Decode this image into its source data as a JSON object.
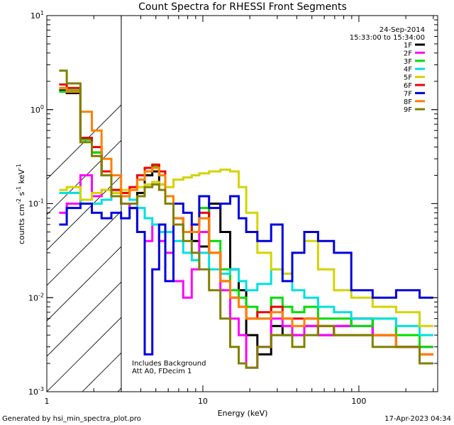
{
  "chart_data": {
    "type": "line",
    "title": "Count Spectra for RHESSI Front Segments",
    "xlabel": "Energy (keV)",
    "ylabel_main": "counts cm",
    "ylabel_exp1": "-2",
    "ylabel_s": " s",
    "ylabel_exp2": "-1",
    "ylabel_kev": " keV",
    "ylabel_exp3": "-1",
    "xscale": "log",
    "yscale": "log",
    "xlim": [
      1,
      320
    ],
    "ylim": [
      0.001,
      10
    ],
    "hatched_region_keV": [
      1,
      3
    ],
    "x_ticks": [
      {
        "value": 1,
        "label": "1"
      },
      {
        "value": 10,
        "label": "10"
      },
      {
        "value": 100,
        "label": "100"
      }
    ],
    "y_ticks": [
      {
        "value": 10,
        "base": "10",
        "exp": "1"
      },
      {
        "value": 1,
        "base": "10",
        "exp": "0"
      },
      {
        "value": 0.1,
        "base": "10",
        "exp": "-1"
      },
      {
        "value": 0.01,
        "base": "10",
        "exp": "-2"
      },
      {
        "value": 0.001,
        "base": "10",
        "exp": "-3"
      }
    ],
    "date": "24-Sep-2014",
    "time_range": "15:33:00 to 15:34:00",
    "annotation_line1": "Includes Background",
    "annotation_line2": "Att A0, FDecim 1",
    "legend_position": "top-right",
    "series": [
      {
        "name": "1F",
        "color": "#000000",
        "x": [
          1.2,
          1.5,
          1.8,
          2.1,
          2.4,
          2.8,
          3.2,
          3.6,
          4.0,
          4.5,
          5.0,
          5.5,
          6.0,
          7.0,
          8.0,
          9.0,
          10,
          12,
          14,
          16,
          18,
          20,
          25,
          30,
          35,
          40,
          50,
          60,
          80,
          100,
          150,
          200,
          300
        ],
        "y": [
          1.6,
          1.5,
          0.5,
          0.35,
          0.2,
          0.13,
          0.1,
          0.09,
          0.13,
          0.2,
          0.22,
          0.16,
          0.1,
          0.06,
          0.05,
          0.04,
          0.035,
          0.1,
          0.05,
          0.02,
          0.012,
          0.004,
          0.0025,
          0.005,
          0.004,
          0.004,
          0.005,
          0.004,
          0.005,
          0.006,
          0.004,
          0.003,
          0.002
        ]
      },
      {
        "name": "2F",
        "color": "#ff00ff",
        "x": [
          1.2,
          1.5,
          1.8,
          2.1,
          2.4,
          2.8,
          3.2,
          3.6,
          4.0,
          4.5,
          5.0,
          5.5,
          6.0,
          7.0,
          8.0,
          9.0,
          10,
          12,
          14,
          16,
          18,
          20,
          25,
          30,
          35,
          40,
          50,
          60,
          80,
          100,
          150,
          200,
          300
        ],
        "y": [
          0.08,
          0.1,
          0.2,
          0.12,
          0.14,
          0.12,
          0.1,
          0.09,
          0.05,
          0.04,
          0.06,
          0.04,
          0.03,
          0.015,
          0.01,
          0.02,
          0.05,
          0.03,
          0.012,
          0.006,
          0.004,
          0.0018,
          0.003,
          0.006,
          0.005,
          0.004,
          0.005,
          0.004,
          0.005,
          0.005,
          0.004,
          0.003,
          0.003
        ]
      },
      {
        "name": "3F",
        "color": "#00dd00",
        "x": [
          1.2,
          1.5,
          1.8,
          2.1,
          2.4,
          2.8,
          3.2,
          3.6,
          4.0,
          4.5,
          5.0,
          5.5,
          6.0,
          7.0,
          8.0,
          9.0,
          10,
          12,
          14,
          16,
          18,
          20,
          25,
          30,
          35,
          40,
          50,
          60,
          80,
          100,
          150,
          200,
          300
        ],
        "y": [
          1.55,
          1.6,
          0.48,
          0.35,
          0.22,
          0.14,
          0.12,
          0.14,
          0.18,
          0.22,
          0.25,
          0.2,
          0.12,
          0.07,
          0.05,
          0.06,
          0.09,
          0.04,
          0.02,
          0.012,
          0.01,
          0.008,
          0.006,
          0.01,
          0.008,
          0.007,
          0.008,
          0.006,
          0.006,
          0.005,
          0.006,
          0.004,
          0.003
        ]
      },
      {
        "name": "4F",
        "color": "#00e0e0",
        "x": [
          1.2,
          1.5,
          1.8,
          2.1,
          2.4,
          2.8,
          3.2,
          3.6,
          4.0,
          4.5,
          5.0,
          5.5,
          6.0,
          7.0,
          8.0,
          9.0,
          10,
          12,
          14,
          16,
          18,
          20,
          25,
          30,
          35,
          40,
          50,
          60,
          80,
          100,
          150,
          200,
          300
        ],
        "y": [
          0.13,
          0.13,
          0.1,
          0.1,
          0.11,
          0.12,
          0.12,
          0.11,
          0.09,
          0.07,
          0.06,
          0.05,
          0.05,
          0.04,
          0.03,
          0.025,
          0.03,
          0.02,
          0.018,
          0.02,
          0.015,
          0.012,
          0.014,
          0.02,
          0.018,
          0.012,
          0.01,
          0.008,
          0.007,
          0.006,
          0.006,
          0.005,
          0.004
        ]
      },
      {
        "name": "5F",
        "color": "#d4d400",
        "x": [
          1.2,
          1.5,
          1.8,
          2.1,
          2.4,
          2.8,
          3.2,
          3.6,
          4.0,
          4.5,
          5.0,
          5.5,
          6.0,
          7.0,
          8.0,
          9.0,
          10,
          12,
          14,
          16,
          18,
          20,
          25,
          30,
          35,
          40,
          50,
          60,
          80,
          100,
          150,
          200,
          300
        ],
        "y": [
          0.14,
          0.15,
          0.11,
          0.13,
          0.14,
          0.13,
          0.14,
          0.14,
          0.15,
          0.16,
          0.17,
          0.16,
          0.15,
          0.18,
          0.19,
          0.2,
          0.21,
          0.22,
          0.23,
          0.22,
          0.15,
          0.08,
          0.03,
          0.02,
          0.018,
          0.03,
          0.04,
          0.02,
          0.012,
          0.01,
          0.008,
          0.007,
          0.005
        ]
      },
      {
        "name": "6F",
        "color": "#ee0000",
        "x": [
          1.2,
          1.5,
          1.8,
          2.1,
          2.4,
          2.8,
          3.2,
          3.6,
          4.0,
          4.5,
          5.0,
          5.5,
          6.0,
          7.0,
          8.0,
          9.0,
          10,
          12,
          14,
          16,
          18,
          20,
          25,
          30,
          35,
          40,
          50,
          60,
          80,
          100,
          150,
          200,
          300
        ],
        "y": [
          1.85,
          1.7,
          0.5,
          0.4,
          0.22,
          0.14,
          0.13,
          0.15,
          0.2,
          0.24,
          0.26,
          0.22,
          0.12,
          0.07,
          0.05,
          0.06,
          0.08,
          0.03,
          0.015,
          0.01,
          0.008,
          0.006,
          0.007,
          0.008,
          0.006,
          0.006,
          0.006,
          0.005,
          0.004,
          0.004,
          0.004,
          0.003,
          0.0025
        ]
      },
      {
        "name": "7F",
        "color": "#0000dd",
        "x": [
          1.2,
          1.5,
          1.8,
          2.1,
          2.4,
          2.8,
          3.2,
          3.6,
          4.0,
          4.5,
          5.0,
          5.5,
          6.0,
          7.0,
          8.0,
          9.0,
          10,
          12,
          14,
          16,
          18,
          20,
          25,
          30,
          35,
          40,
          50,
          60,
          80,
          100,
          150,
          200,
          300
        ],
        "y": [
          0.06,
          0.09,
          0.1,
          0.08,
          0.07,
          0.08,
          0.07,
          0.09,
          0.05,
          0.0025,
          0.02,
          0.06,
          0.015,
          0.1,
          0.08,
          0.06,
          0.12,
          0.09,
          0.1,
          0.12,
          0.07,
          0.05,
          0.04,
          0.06,
          0.015,
          0.03,
          0.05,
          0.04,
          0.03,
          0.012,
          0.01,
          0.012,
          0.01
        ]
      },
      {
        "name": "8F",
        "color": "#ff7f00",
        "x": [
          1.2,
          1.5,
          1.8,
          2.1,
          2.4,
          2.8,
          3.2,
          3.6,
          4.0,
          4.5,
          5.0,
          5.5,
          6.0,
          7.0,
          8.0,
          9.0,
          10,
          12,
          14,
          16,
          18,
          20,
          25,
          30,
          35,
          40,
          50,
          60,
          80,
          100,
          150,
          200,
          300
        ],
        "y": [
          1.7,
          1.55,
          0.95,
          0.6,
          0.3,
          0.2,
          0.12,
          0.14,
          0.18,
          0.22,
          0.24,
          0.2,
          0.12,
          0.07,
          0.05,
          0.05,
          0.07,
          0.03,
          0.015,
          0.01,
          0.008,
          0.006,
          0.006,
          0.007,
          0.006,
          0.005,
          0.006,
          0.005,
          0.004,
          0.004,
          0.004,
          0.003,
          0.0025
        ]
      },
      {
        "name": "9F",
        "color": "#808000",
        "x": [
          1.2,
          1.5,
          1.8,
          2.1,
          2.4,
          2.8,
          3.2,
          3.6,
          4.0,
          4.5,
          5.0,
          5.5,
          6.0,
          7.0,
          8.0,
          9.0,
          10,
          12,
          14,
          16,
          18,
          20,
          25,
          30,
          35,
          40,
          50,
          60,
          80,
          100,
          150,
          200,
          300
        ],
        "y": [
          2.6,
          1.9,
          0.45,
          0.32,
          0.2,
          0.12,
          0.1,
          0.1,
          0.12,
          0.15,
          0.16,
          0.14,
          0.1,
          0.06,
          0.04,
          0.03,
          0.02,
          0.012,
          0.006,
          0.003,
          0.002,
          0.0018,
          0.003,
          0.004,
          0.004,
          0.003,
          0.004,
          0.005,
          0.004,
          0.004,
          0.003,
          0.003,
          0.002
        ]
      }
    ]
  },
  "footer": {
    "generated_by": "Generated by hsi_min_spectra_plot.pro",
    "timestamp": "17-Apr-2023 04:34"
  }
}
